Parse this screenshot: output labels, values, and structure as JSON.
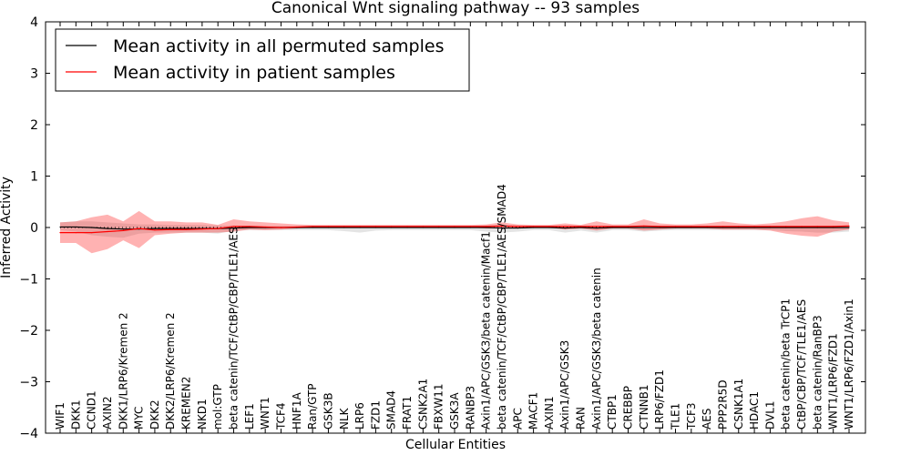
{
  "chart_data": {
    "type": "line",
    "title": "Canonical Wnt signaling pathway -- 93 samples",
    "xlabel": "Cellular Entities",
    "ylabel": "Inferred Activity",
    "ylim": [
      -4,
      4
    ],
    "yticks": [
      -4,
      -3,
      -2,
      -1,
      0,
      1,
      2,
      3,
      4
    ],
    "ytick_labels": [
      "−4",
      "−3",
      "−2",
      "−1",
      "0",
      "1",
      "2",
      "3",
      "4"
    ],
    "legend_position": "top-left",
    "categories": [
      "WIF1",
      "DKK1",
      "CCND1",
      "AXIN2",
      "DKK1/LRP6/Kremen 2",
      "MYC",
      "DKK2",
      "DKK2/LRP6/Kremen 2",
      "KREMEN2",
      "NKD1",
      "mol:GTP",
      "beta catenin/TCF/CtBP/CBP/TLE1/AES",
      "LEF1",
      "WNT1",
      "TCF4",
      "HNF1A",
      "Ran/GTP",
      "GSK3B",
      "NLK",
      "LRP6",
      "FZD1",
      "SMAD4",
      "FRAT1",
      "CSNK2A1",
      "FBXW11",
      "GSK3A",
      "RANBP3",
      "Axin1/APC/GSK3/beta catenin/Macf1",
      "beta catenin/TCF/CtBP/CBP/TLE1/AES/SMAD4",
      "APC",
      "MACF1",
      "AXIN1",
      "Axin1/APC/GSK3",
      "RAN",
      "Axin1/APC/GSK3/beta catenin",
      "CTBP1",
      "CREBBP",
      "CTNNB1",
      "LRP6/FZD1",
      "TLE1",
      "TCF3",
      "AES",
      "PPP2R5D",
      "CSNK1A1",
      "HDAC1",
      "DVL1",
      "beta catenin/beta TrCP1",
      "CtBP/CBP/TCF/TLE1/AES",
      "beta catenin/RanBP3",
      "WNT1/LRP6/FZD1",
      "WNT1/LRP6/FZD1/Axin1"
    ],
    "series": [
      {
        "name": "Mean activity in all permuted samples",
        "color": "#000000",
        "values": [
          0.01,
          0.01,
          0.0,
          -0.02,
          -0.03,
          -0.03,
          -0.02,
          -0.02,
          -0.02,
          -0.02,
          -0.02,
          -0.01,
          0.0,
          0.0,
          0.0,
          0.0,
          0.0,
          0.0,
          0.0,
          0.0,
          0.0,
          0.0,
          0.0,
          0.0,
          0.0,
          0.0,
          0.0,
          0.0,
          -0.01,
          -0.01,
          0.0,
          0.0,
          -0.01,
          0.0,
          -0.01,
          0.0,
          0.0,
          0.0,
          0.0,
          0.0,
          0.0,
          0.0,
          0.0,
          0.0,
          0.0,
          0.0,
          0.0,
          0.0,
          0.0,
          0.0,
          0.0
        ],
        "band_lower": [
          -0.05,
          -0.08,
          -0.15,
          -0.18,
          -0.2,
          -0.12,
          -0.1,
          -0.1,
          -0.1,
          -0.1,
          -0.12,
          -0.06,
          -0.05,
          -0.05,
          -0.05,
          -0.05,
          -0.05,
          -0.05,
          -0.07,
          -0.1,
          -0.06,
          -0.05,
          -0.05,
          -0.05,
          -0.05,
          -0.05,
          -0.05,
          -0.08,
          -0.1,
          -0.08,
          -0.05,
          -0.05,
          -0.1,
          -0.06,
          -0.1,
          -0.05,
          -0.05,
          -0.08,
          -0.06,
          -0.05,
          -0.05,
          -0.05,
          -0.05,
          -0.05,
          -0.05,
          -0.05,
          -0.07,
          -0.08,
          -0.1,
          -0.1,
          -0.08
        ],
        "band_upper": [
          0.1,
          0.12,
          0.12,
          0.1,
          0.08,
          0.06,
          0.06,
          0.05,
          0.05,
          0.05,
          0.04,
          0.04,
          0.03,
          0.03,
          0.03,
          0.03,
          0.03,
          0.03,
          0.03,
          0.03,
          0.03,
          0.03,
          0.03,
          0.03,
          0.03,
          0.03,
          0.03,
          0.04,
          0.05,
          0.04,
          0.03,
          0.03,
          0.04,
          0.03,
          0.03,
          0.03,
          0.03,
          0.04,
          0.03,
          0.03,
          0.03,
          0.03,
          0.03,
          0.03,
          0.03,
          0.03,
          0.03,
          0.03,
          0.04,
          0.04,
          0.04
        ]
      },
      {
        "name": "Mean activity in patient samples",
        "color": "#ff0000",
        "values": [
          -0.1,
          -0.1,
          -0.1,
          -0.08,
          -0.06,
          -0.02,
          -0.05,
          -0.04,
          -0.04,
          -0.03,
          -0.02,
          0.02,
          0.02,
          0.01,
          0.0,
          0.01,
          0.02,
          0.02,
          0.02,
          0.02,
          0.02,
          0.02,
          0.02,
          0.02,
          0.02,
          0.02,
          0.02,
          0.02,
          0.03,
          0.02,
          0.02,
          0.02,
          0.02,
          0.02,
          0.02,
          0.02,
          0.02,
          0.03,
          0.02,
          0.02,
          0.02,
          0.02,
          0.02,
          0.02,
          0.02,
          0.02,
          0.02,
          0.02,
          0.02,
          0.02,
          0.03
        ],
        "band_lower": [
          -0.3,
          -0.3,
          -0.5,
          -0.42,
          -0.25,
          -0.4,
          -0.15,
          -0.12,
          -0.1,
          -0.1,
          -0.1,
          -0.08,
          -0.04,
          -0.05,
          -0.04,
          -0.02,
          0.0,
          0.0,
          0.0,
          0.0,
          0.0,
          0.0,
          0.0,
          0.0,
          0.0,
          0.0,
          0.0,
          -0.02,
          -0.02,
          -0.02,
          0.0,
          0.0,
          -0.04,
          -0.02,
          -0.06,
          -0.02,
          -0.02,
          -0.06,
          -0.04,
          -0.02,
          -0.02,
          -0.02,
          -0.04,
          -0.04,
          -0.04,
          -0.06,
          -0.12,
          -0.16,
          -0.18,
          -0.08,
          -0.04
        ],
        "band_upper": [
          0.1,
          0.12,
          0.2,
          0.25,
          0.12,
          0.32,
          0.12,
          0.12,
          0.1,
          0.1,
          0.05,
          0.16,
          0.12,
          0.1,
          0.08,
          0.06,
          0.05,
          0.05,
          0.05,
          0.05,
          0.05,
          0.05,
          0.05,
          0.05,
          0.05,
          0.05,
          0.05,
          0.06,
          0.1,
          0.06,
          0.05,
          0.05,
          0.08,
          0.05,
          0.12,
          0.06,
          0.06,
          0.16,
          0.08,
          0.06,
          0.06,
          0.08,
          0.12,
          0.08,
          0.06,
          0.08,
          0.12,
          0.18,
          0.22,
          0.14,
          0.1
        ]
      }
    ]
  }
}
